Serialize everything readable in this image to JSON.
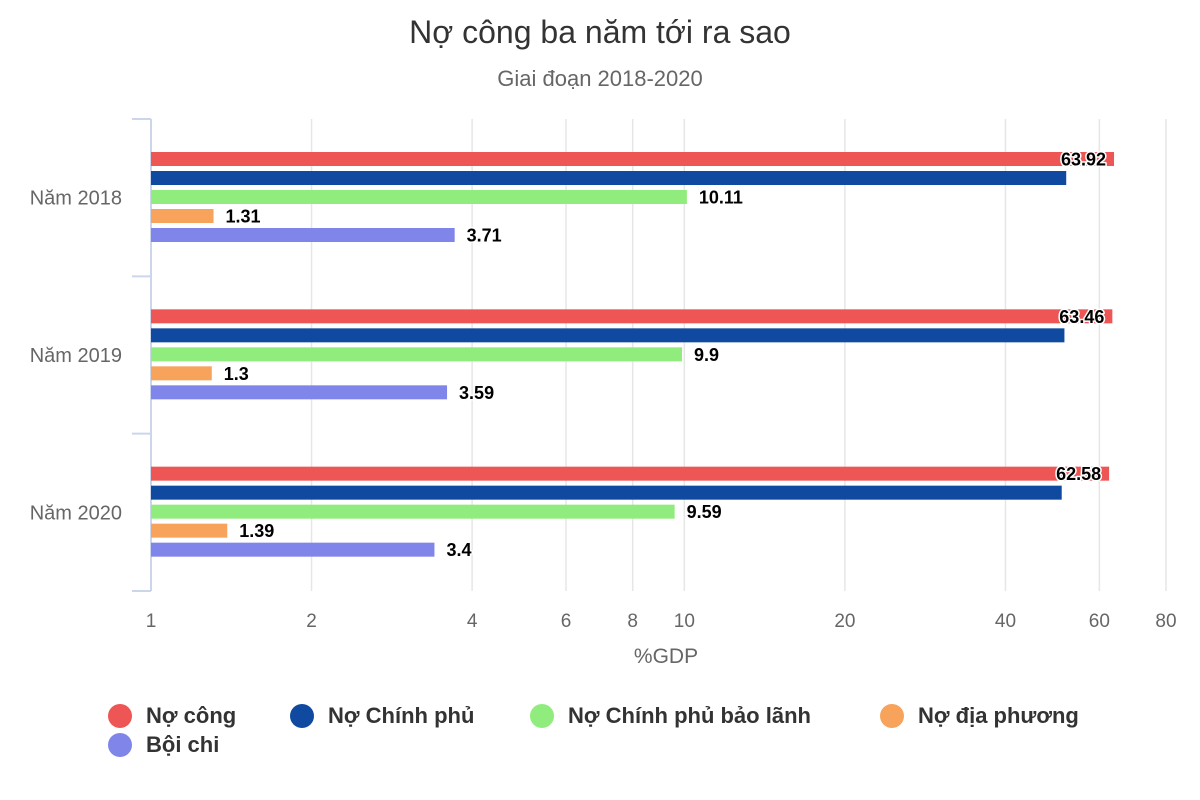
{
  "chart_data": {
    "type": "bar",
    "orientation": "horizontal",
    "title": "Nợ công ba năm tới ra sao",
    "subtitle": "Giai đoạn 2018-2020",
    "xlabel": "%GDP",
    "ylabel": "",
    "xscale": "log",
    "xlim": [
      1,
      80
    ],
    "xticks": [
      "1",
      "2",
      "4",
      "6",
      "8",
      "10",
      "20",
      "40",
      "60",
      "80"
    ],
    "grid": true,
    "legend_position": "bottom",
    "categories": [
      "Năm 2018",
      "Năm 2019",
      "Năm 2020"
    ],
    "series": [
      {
        "name": "Nợ công",
        "color": "#ee5555",
        "values": [
          63.92,
          63.46,
          62.58
        ],
        "labels": [
          "63.92",
          "63.46",
          "62.58"
        ]
      },
      {
        "name": "Nợ Chính phủ",
        "color": "#0f4aa0",
        "values": [
          52,
          51.6,
          51
        ],
        "labels": [
          "",
          "",
          ""
        ]
      },
      {
        "name": "Nợ Chính phủ bảo lãnh",
        "color": "#90ec7d",
        "values": [
          10.11,
          9.9,
          9.59
        ],
        "labels": [
          "10.11",
          "9.9",
          "9.59"
        ]
      },
      {
        "name": "Nợ địa phương",
        "color": "#f7a35c",
        "values": [
          1.31,
          1.3,
          1.39
        ],
        "labels": [
          "1.31",
          "1.3",
          "1.39"
        ]
      },
      {
        "name": "Bội chi",
        "color": "#8085e9",
        "values": [
          3.71,
          3.59,
          3.4
        ],
        "labels": [
          "3.71",
          "3.59",
          "3.4"
        ]
      }
    ]
  }
}
